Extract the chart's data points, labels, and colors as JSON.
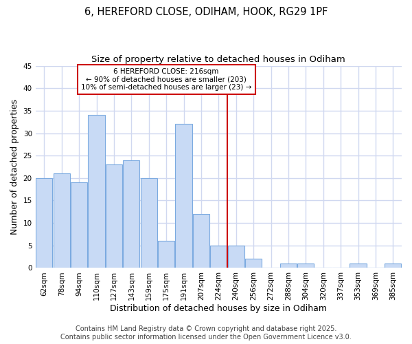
{
  "title_line1": "6, HEREFORD CLOSE, ODIHAM, HOOK, RG29 1PF",
  "title_line2": "Size of property relative to detached houses in Odiham",
  "xlabel": "Distribution of detached houses by size in Odiham",
  "ylabel": "Number of detached properties",
  "bar_labels": [
    "62sqm",
    "78sqm",
    "94sqm",
    "110sqm",
    "127sqm",
    "143sqm",
    "159sqm",
    "175sqm",
    "191sqm",
    "207sqm",
    "224sqm",
    "240sqm",
    "256sqm",
    "272sqm",
    "288sqm",
    "304sqm",
    "320sqm",
    "337sqm",
    "353sqm",
    "369sqm",
    "385sqm"
  ],
  "bar_values": [
    20,
    21,
    19,
    34,
    23,
    24,
    20,
    6,
    32,
    12,
    5,
    5,
    2,
    0,
    1,
    1,
    0,
    0,
    1,
    0,
    1
  ],
  "bar_color": "#c8daf5",
  "bar_edge_color": "#7baae0",
  "reference_line_x": 10.5,
  "annotation_line1": "6 HEREFORD CLOSE: 216sqm",
  "annotation_line2": "← 90% of detached houses are smaller (203)",
  "annotation_line3": "10% of semi-detached houses are larger (23) →",
  "annotation_box_color": "#ffffff",
  "annotation_box_edge_color": "#cc0000",
  "ylim": [
    0,
    45
  ],
  "yticks": [
    0,
    5,
    10,
    15,
    20,
    25,
    30,
    35,
    40,
    45
  ],
  "footer_line1": "Contains HM Land Registry data © Crown copyright and database right 2025.",
  "footer_line2": "Contains public sector information licensed under the Open Government Licence v3.0.",
  "background_color": "#ffffff",
  "plot_background_color": "#ffffff",
  "grid_color": "#d0d8f0",
  "title_fontsize": 10.5,
  "subtitle_fontsize": 9.5,
  "axis_label_fontsize": 9,
  "tick_fontsize": 7.5,
  "footer_fontsize": 7
}
